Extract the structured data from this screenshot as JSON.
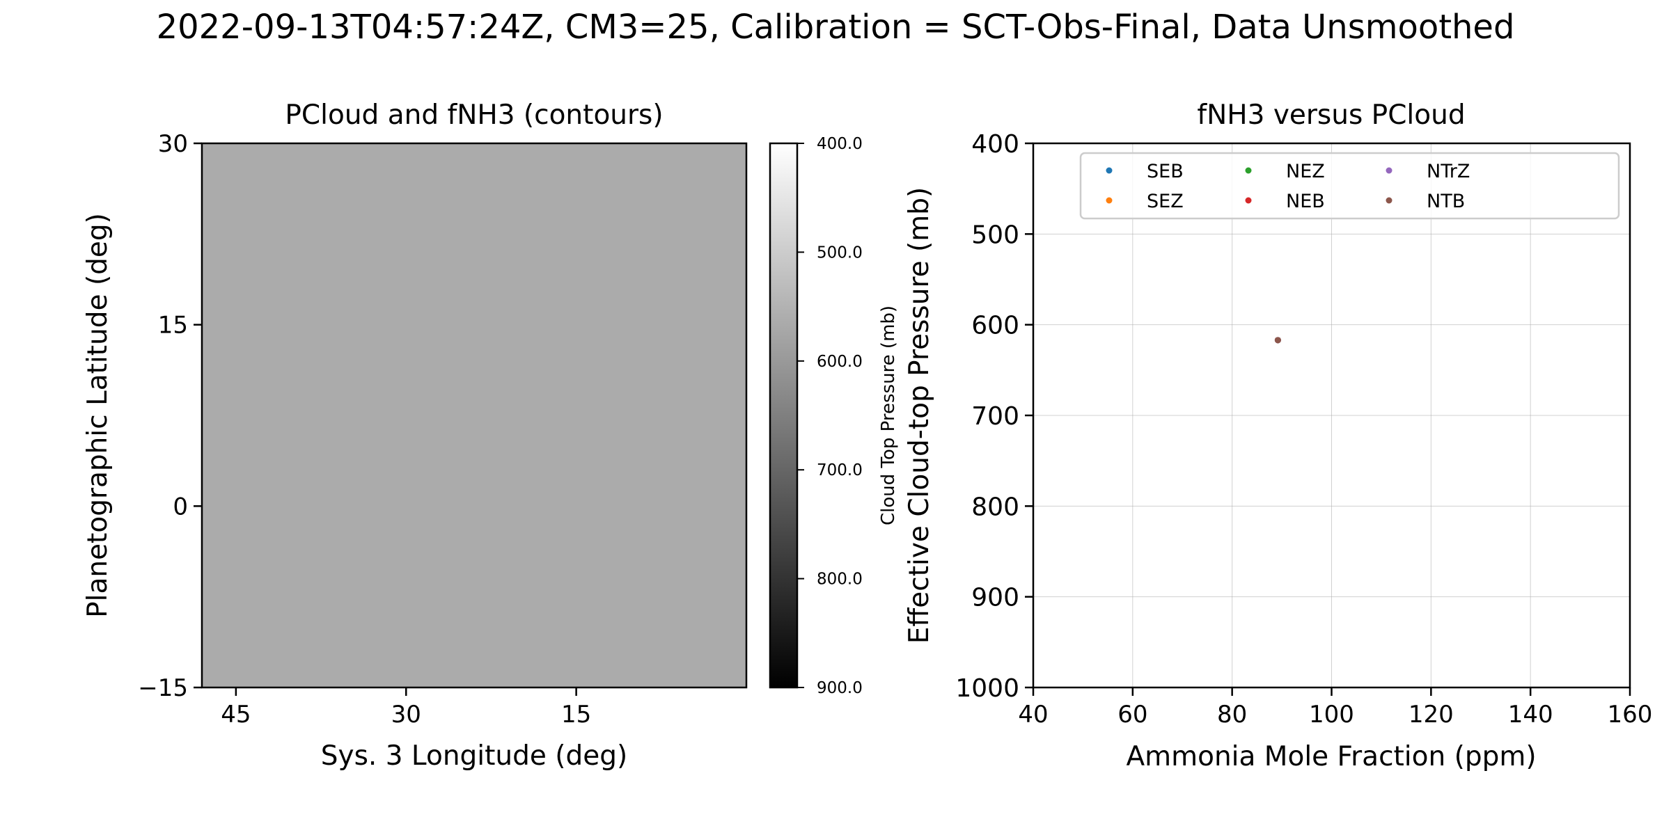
{
  "figure": {
    "suptitle": "2022-09-13T04:57:24Z, CM3=25, Calibration = SCT-Obs-Final, Data Unsmoothed"
  },
  "chart_data": [
    {
      "type": "heatmap",
      "title": "PCloud and fNH3 (contours)",
      "xlabel": "Sys. 3 Longitude (deg)",
      "ylabel": "Planetographic Latitude (deg)",
      "xlim": [
        48,
        0
      ],
      "ylim": [
        -15,
        30
      ],
      "xticks": [
        45,
        30,
        15
      ],
      "xtick_labels": [
        "45",
        "30",
        "15"
      ],
      "yticks": [
        30,
        15,
        0,
        -15
      ],
      "ytick_labels": [
        "30",
        "15",
        "0",
        "−15"
      ],
      "field_value": 661,
      "field_color": "#ababab",
      "colorbar": {
        "label": "Cloud Top Pressure (mb)",
        "range": [
          400,
          900
        ],
        "ticks": [
          400,
          500,
          600,
          700,
          800,
          900
        ],
        "tick_labels": [
          "400.0",
          "500.0",
          "600.0",
          "700.0",
          "800.0",
          "900.0"
        ],
        "colors": [
          "#ffffff",
          "#000000"
        ]
      }
    },
    {
      "type": "scatter",
      "title": "fNH3 versus PCloud",
      "xlabel": "Ammonia Mole Fraction (ppm)",
      "ylabel": "Effective Cloud-top Pressure (mb)",
      "xlim": [
        40,
        160
      ],
      "ylim": [
        1000,
        400
      ],
      "y_inverted": true,
      "grid": true,
      "xticks": [
        40,
        60,
        80,
        100,
        120,
        140,
        160
      ],
      "yticks": [
        400,
        500,
        600,
        700,
        800,
        900,
        1000
      ],
      "legend_placement": "upper right",
      "series": [
        {
          "name": "SEB",
          "color": "#1f77b4",
          "points": [
            [
              89.2,
              617
            ]
          ]
        },
        {
          "name": "SEZ",
          "color": "#ff7f0e",
          "points": [
            [
              89.2,
              617
            ]
          ]
        },
        {
          "name": "NEZ",
          "color": "#2ca02c",
          "points": [
            [
              89.2,
              617
            ]
          ]
        },
        {
          "name": "NEB",
          "color": "#d62728",
          "points": [
            [
              89.2,
              617
            ]
          ]
        },
        {
          "name": "NTrZ",
          "color": "#9467bd",
          "points": [
            [
              89.2,
              617
            ]
          ]
        },
        {
          "name": "NTB",
          "color": "#8c564b",
          "points": [
            [
              89.2,
              617
            ]
          ]
        }
      ]
    }
  ]
}
